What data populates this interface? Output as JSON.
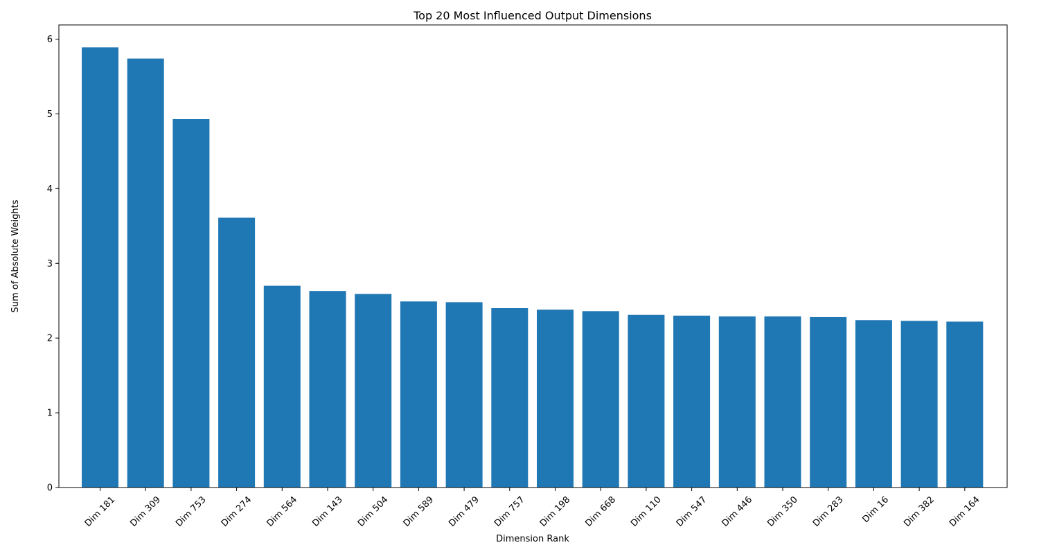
{
  "chart_data": {
    "type": "bar",
    "title": "Top 20 Most Influenced Output Dimensions",
    "xlabel": "Dimension Rank",
    "ylabel": "Sum of Absolute Weights",
    "categories": [
      "Dim 181",
      "Dim 309",
      "Dim 753",
      "Dim 274",
      "Dim 564",
      "Dim 143",
      "Dim 504",
      "Dim 589",
      "Dim 479",
      "Dim 757",
      "Dim 198",
      "Dim 668",
      "Dim 110",
      "Dim 547",
      "Dim 446",
      "Dim 350",
      "Dim 283",
      "Dim 16",
      "Dim 382",
      "Dim 164"
    ],
    "values": [
      5.89,
      5.74,
      4.93,
      3.61,
      2.7,
      2.63,
      2.59,
      2.49,
      2.48,
      2.4,
      2.38,
      2.36,
      2.31,
      2.3,
      2.29,
      2.29,
      2.28,
      2.24,
      2.23,
      2.22
    ],
    "yticks": [
      "0",
      "1",
      "2",
      "3",
      "4",
      "5",
      "6"
    ],
    "ylim": [
      0,
      6.19
    ],
    "bar_color": "#1f77b4",
    "grid": false,
    "legend": "none"
  }
}
